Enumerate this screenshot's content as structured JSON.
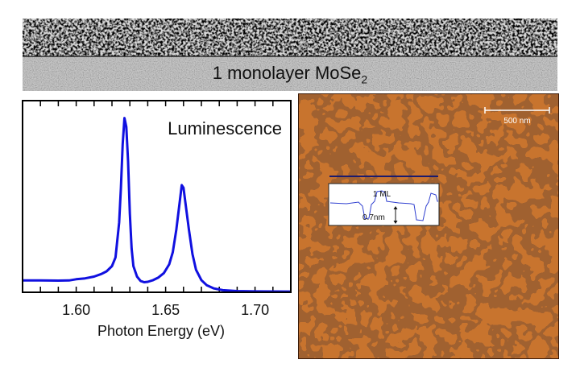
{
  "tem_panel": {
    "label": "1 monolayer MoSe",
    "label_subscript": "2"
  },
  "chart_data": {
    "type": "line",
    "title": "Luminescence",
    "xlabel": "Photon Energy (eV)",
    "ylabel": "",
    "xlim": [
      1.57,
      1.72
    ],
    "ylim": [
      0,
      1.1
    ],
    "xticks": [
      1.6,
      1.65,
      1.7
    ],
    "xtick_labels": [
      "1.60",
      "1.65",
      "1.70"
    ],
    "minor_tick_step": 0.01,
    "grid": false,
    "line_color": "#1010e0",
    "series": [
      {
        "x": [
          1.57,
          1.58,
          1.59,
          1.596,
          1.6,
          1.605,
          1.61,
          1.614,
          1.617,
          1.62,
          1.622,
          1.624,
          1.625,
          1.626,
          1.627,
          1.628,
          1.629,
          1.63,
          1.631,
          1.632,
          1.634,
          1.636,
          1.638,
          1.64,
          1.643,
          1.646,
          1.649,
          1.652,
          1.654,
          1.656,
          1.658,
          1.659,
          1.66,
          1.661,
          1.663,
          1.665,
          1.667,
          1.67,
          1.673,
          1.677,
          1.682,
          1.69,
          1.7,
          1.72
        ],
        "y": [
          0.068,
          0.068,
          0.067,
          0.068,
          0.075,
          0.08,
          0.09,
          0.105,
          0.12,
          0.15,
          0.2,
          0.4,
          0.6,
          0.85,
          1.0,
          0.95,
          0.75,
          0.45,
          0.25,
          0.15,
          0.09,
          0.065,
          0.058,
          0.06,
          0.07,
          0.085,
          0.11,
          0.16,
          0.23,
          0.36,
          0.53,
          0.615,
          0.6,
          0.52,
          0.36,
          0.22,
          0.13,
          0.07,
          0.04,
          0.022,
          0.012,
          0.007,
          0.005,
          0.004
        ]
      }
    ]
  },
  "afm_panel": {
    "scale_bar_label": "500 nm",
    "profile_label_top": "1 ML",
    "profile_label_height": "0.7nm",
    "profile_line_color": "#1a1a6e",
    "profile_trace_color": "#3040d0",
    "colors": {
      "base": "#c8742e",
      "dark": "#5a1f08",
      "bright": "#f5d9a0"
    }
  }
}
